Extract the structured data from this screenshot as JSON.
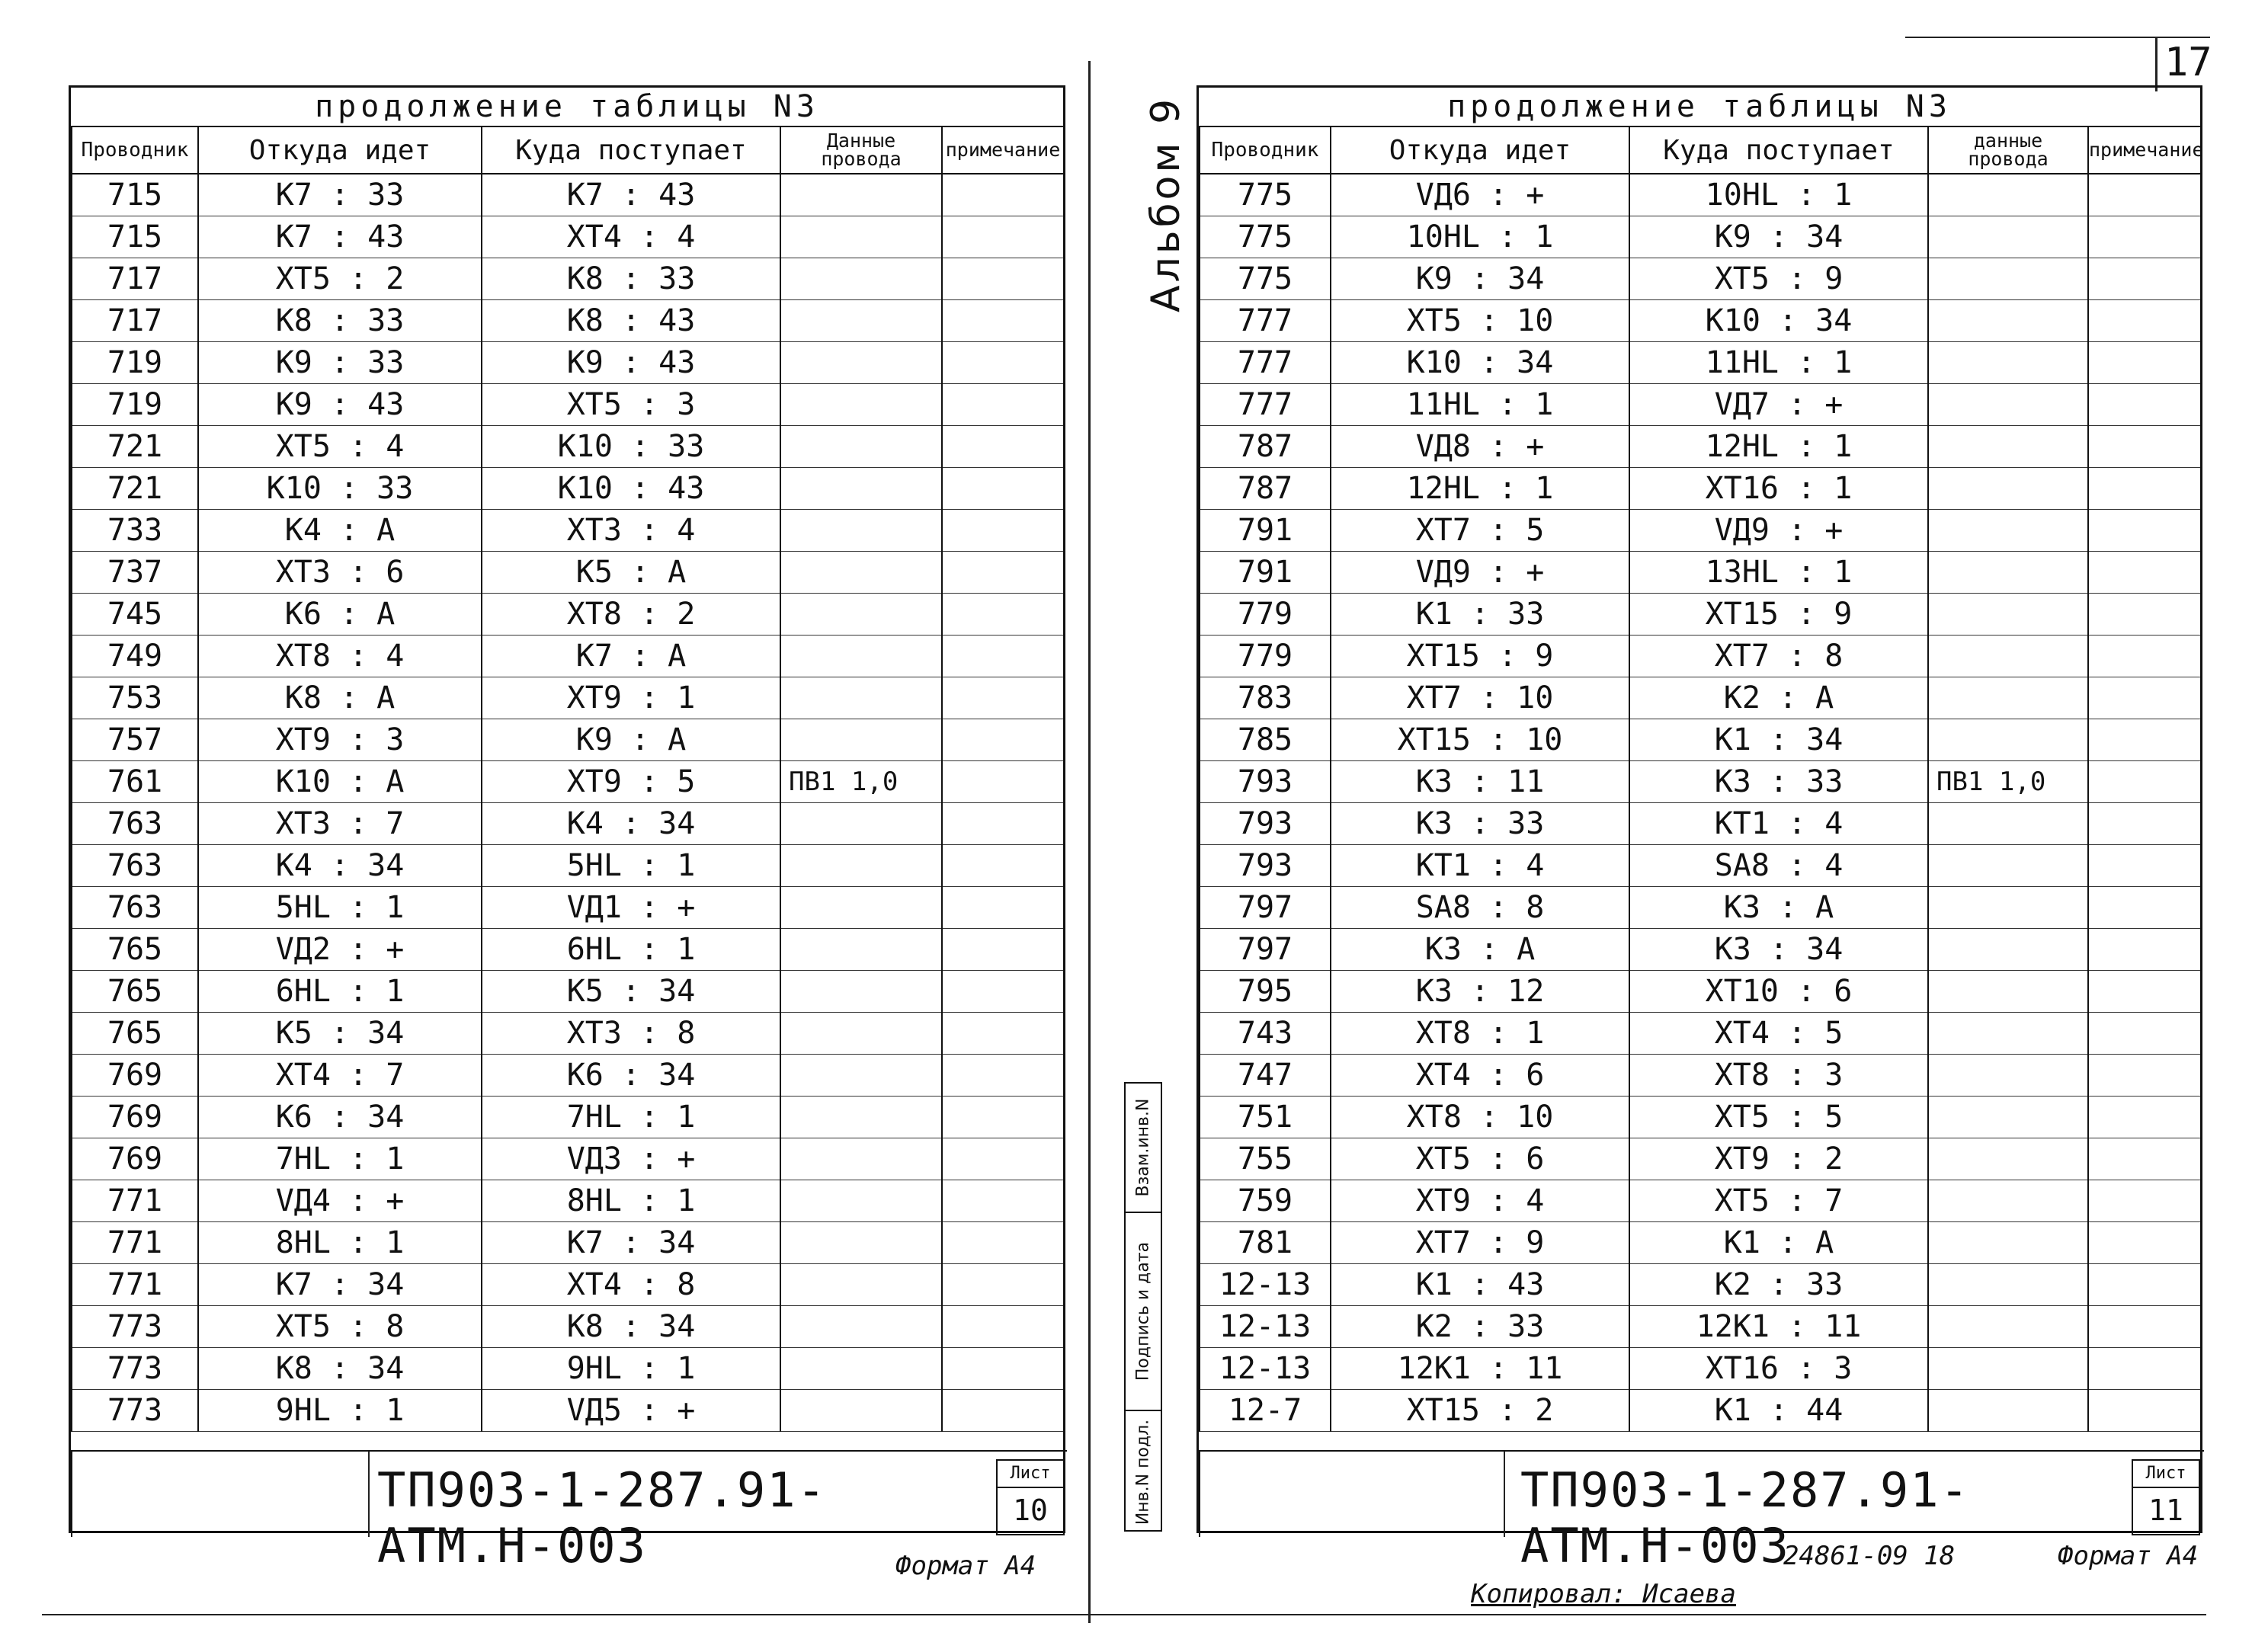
{
  "page_number": "17",
  "album": "Альбом 9",
  "copied_by": "Копировал: Исаева",
  "archive_number": "24861-09 18",
  "format_label": "Формат А4",
  "left_sheet": {
    "caption": "продолжение таблицы N3",
    "headers": {
      "wire": "Проводник",
      "from": "Откуда идет",
      "to": "Куда поступает",
      "data": "Данные провода",
      "note": "примечание"
    },
    "rows": [
      {
        "wire": "715",
        "from": "К7 : 33",
        "to": "К7 : 43",
        "data": ""
      },
      {
        "wire": "715",
        "from": "К7 : 43",
        "to": "ХТ4 : 4",
        "data": ""
      },
      {
        "wire": "717",
        "from": "ХТ5 : 2",
        "to": "К8 : 33",
        "data": ""
      },
      {
        "wire": "717",
        "from": "К8 : 33",
        "to": "К8 : 43",
        "data": ""
      },
      {
        "wire": "719",
        "from": "К9 : 33",
        "to": "К9 : 43",
        "data": ""
      },
      {
        "wire": "719",
        "from": "К9 : 43",
        "to": "ХТ5 : 3",
        "data": ""
      },
      {
        "wire": "721",
        "from": "ХТ5 : 4",
        "to": "К10 : 33",
        "data": ""
      },
      {
        "wire": "721",
        "from": "К10 : 33",
        "to": "К10 : 43",
        "data": ""
      },
      {
        "wire": "733",
        "from": "К4 : А",
        "to": "ХТ3 : 4",
        "data": ""
      },
      {
        "wire": "737",
        "from": "ХТ3 : 6",
        "to": "К5 : А",
        "data": ""
      },
      {
        "wire": "745",
        "from": "К6 : А",
        "to": "ХТ8 : 2",
        "data": ""
      },
      {
        "wire": "749",
        "from": "ХТ8 : 4",
        "to": "К7 : А",
        "data": ""
      },
      {
        "wire": "753",
        "from": "К8 : А",
        "to": "ХТ9 : 1",
        "data": ""
      },
      {
        "wire": "757",
        "from": "ХТ9 : 3",
        "to": "К9 : А",
        "data": ""
      },
      {
        "wire": "761",
        "from": "К10 : А",
        "to": "ХТ9 : 5",
        "data": "ПВ1 1,0"
      },
      {
        "wire": "763",
        "from": "ХТ3 : 7",
        "to": "К4 : 34",
        "data": ""
      },
      {
        "wire": "763",
        "from": "К4 : 34",
        "to": "5HL : 1",
        "data": ""
      },
      {
        "wire": "763",
        "from": "5HL : 1",
        "to": "VД1 : +",
        "data": ""
      },
      {
        "wire": "765",
        "from": "VД2 : +",
        "to": "6HL : 1",
        "data": ""
      },
      {
        "wire": "765",
        "from": "6HL : 1",
        "to": "К5 : 34",
        "data": ""
      },
      {
        "wire": "765",
        "from": "К5 : 34",
        "to": "ХТ3 : 8",
        "data": ""
      },
      {
        "wire": "769",
        "from": "ХТ4 : 7",
        "to": "К6 : 34",
        "data": ""
      },
      {
        "wire": "769",
        "from": "К6 : 34",
        "to": "7HL : 1",
        "data": ""
      },
      {
        "wire": "769",
        "from": "7HL : 1",
        "to": "VД3 : +",
        "data": ""
      },
      {
        "wire": "771",
        "from": "VД4 : +",
        "to": "8HL : 1",
        "data": ""
      },
      {
        "wire": "771",
        "from": "8HL : 1",
        "to": "К7 : 34",
        "data": ""
      },
      {
        "wire": "771",
        "from": "К7 : 34",
        "to": "ХТ4 : 8",
        "data": ""
      },
      {
        "wire": "773",
        "from": "ХТ5 : 8",
        "to": "К8 : 34",
        "data": ""
      },
      {
        "wire": "773",
        "from": "К8 : 34",
        "to": "9HL : 1",
        "data": ""
      },
      {
        "wire": "773",
        "from": "9HL : 1",
        "to": "VД5 : +",
        "data": ""
      }
    ],
    "doc_code": "ТП903-1-287.91-   АТМ.Н-003",
    "sheet_label": "Лист",
    "sheet_number": "10"
  },
  "right_sheet": {
    "caption": "продолжение таблицы N3",
    "headers": {
      "wire": "Проводник",
      "from": "Откуда идет",
      "to": "Куда поступает",
      "data": "данные провода",
      "note": "примечание"
    },
    "rows": [
      {
        "wire": "775",
        "from": "VД6 : +",
        "to": "10HL : 1",
        "data": ""
      },
      {
        "wire": "775",
        "from": "10HL : 1",
        "to": "К9 : 34",
        "data": ""
      },
      {
        "wire": "775",
        "from": "К9 : 34",
        "to": "ХТ5 : 9",
        "data": ""
      },
      {
        "wire": "777",
        "from": "ХТ5 : 10",
        "to": "К10 : 34",
        "data": ""
      },
      {
        "wire": "777",
        "from": "К10 : 34",
        "to": "11HL : 1",
        "data": ""
      },
      {
        "wire": "777",
        "from": "11HL : 1",
        "to": "VД7 : +",
        "data": ""
      },
      {
        "wire": "787",
        "from": "VД8 : +",
        "to": "12HL : 1",
        "data": ""
      },
      {
        "wire": "787",
        "from": "12HL : 1",
        "to": "ХТ16 : 1",
        "data": ""
      },
      {
        "wire": "791",
        "from": "ХТ7 : 5",
        "to": "VД9 : +",
        "data": ""
      },
      {
        "wire": "791",
        "from": "VД9 : +",
        "to": "13HL : 1",
        "data": ""
      },
      {
        "wire": "779",
        "from": "К1 : 33",
        "to": "ХТ15 : 9",
        "data": ""
      },
      {
        "wire": "779",
        "from": "ХТ15 : 9",
        "to": "ХТ7 : 8",
        "data": ""
      },
      {
        "wire": "783",
        "from": "ХТ7 : 10",
        "to": "К2 : А",
        "data": ""
      },
      {
        "wire": "785",
        "from": "ХТ15 : 10",
        "to": "К1 : 34",
        "data": ""
      },
      {
        "wire": "793",
        "from": "К3 : 11",
        "to": "К3 : 33",
        "data": "ПВ1 1,0"
      },
      {
        "wire": "793",
        "from": "К3 : 33",
        "to": "КТ1 : 4",
        "data": ""
      },
      {
        "wire": "793",
        "from": "КТ1 : 4",
        "to": "SA8 : 4",
        "data": ""
      },
      {
        "wire": "797",
        "from": "SA8 : 8",
        "to": "К3 : А",
        "data": ""
      },
      {
        "wire": "797",
        "from": "К3 : А",
        "to": "К3 : 34",
        "data": ""
      },
      {
        "wire": "795",
        "from": "К3 : 12",
        "to": "ХТ10 : 6",
        "data": ""
      },
      {
        "wire": "743",
        "from": "ХТ8 : 1",
        "to": "ХТ4 : 5",
        "data": ""
      },
      {
        "wire": "747",
        "from": "ХТ4 : 6",
        "to": "ХТ8 : 3",
        "data": ""
      },
      {
        "wire": "751",
        "from": "ХТ8 : 10",
        "to": "ХТ5 : 5",
        "data": ""
      },
      {
        "wire": "755",
        "from": "ХТ5 : 6",
        "to": "ХТ9 : 2",
        "data": ""
      },
      {
        "wire": "759",
        "from": "ХТ9 : 4",
        "to": "ХТ5 : 7",
        "data": ""
      },
      {
        "wire": "781",
        "from": "ХТ7 : 9",
        "to": "К1 : А",
        "data": ""
      },
      {
        "wire": "12-13",
        "from": "К1 : 43",
        "to": "К2 : 33",
        "data": ""
      },
      {
        "wire": "12-13",
        "from": "К2 : 33",
        "to": "12К1 : 11",
        "data": ""
      },
      {
        "wire": "12-13",
        "from": "12К1 : 11",
        "to": "ХТ16 : 3",
        "data": ""
      },
      {
        "wire": "12-7",
        "from": "ХТ15 : 2",
        "to": "К1 : 44",
        "data": ""
      }
    ],
    "doc_code": "ТП903-1-287.91- АТМ.Н-003",
    "sheet_label": "Лист",
    "sheet_number": "11",
    "side_labels": [
      "Взам.инв.N",
      "Подпись и дата",
      "Инв.N подл."
    ]
  }
}
